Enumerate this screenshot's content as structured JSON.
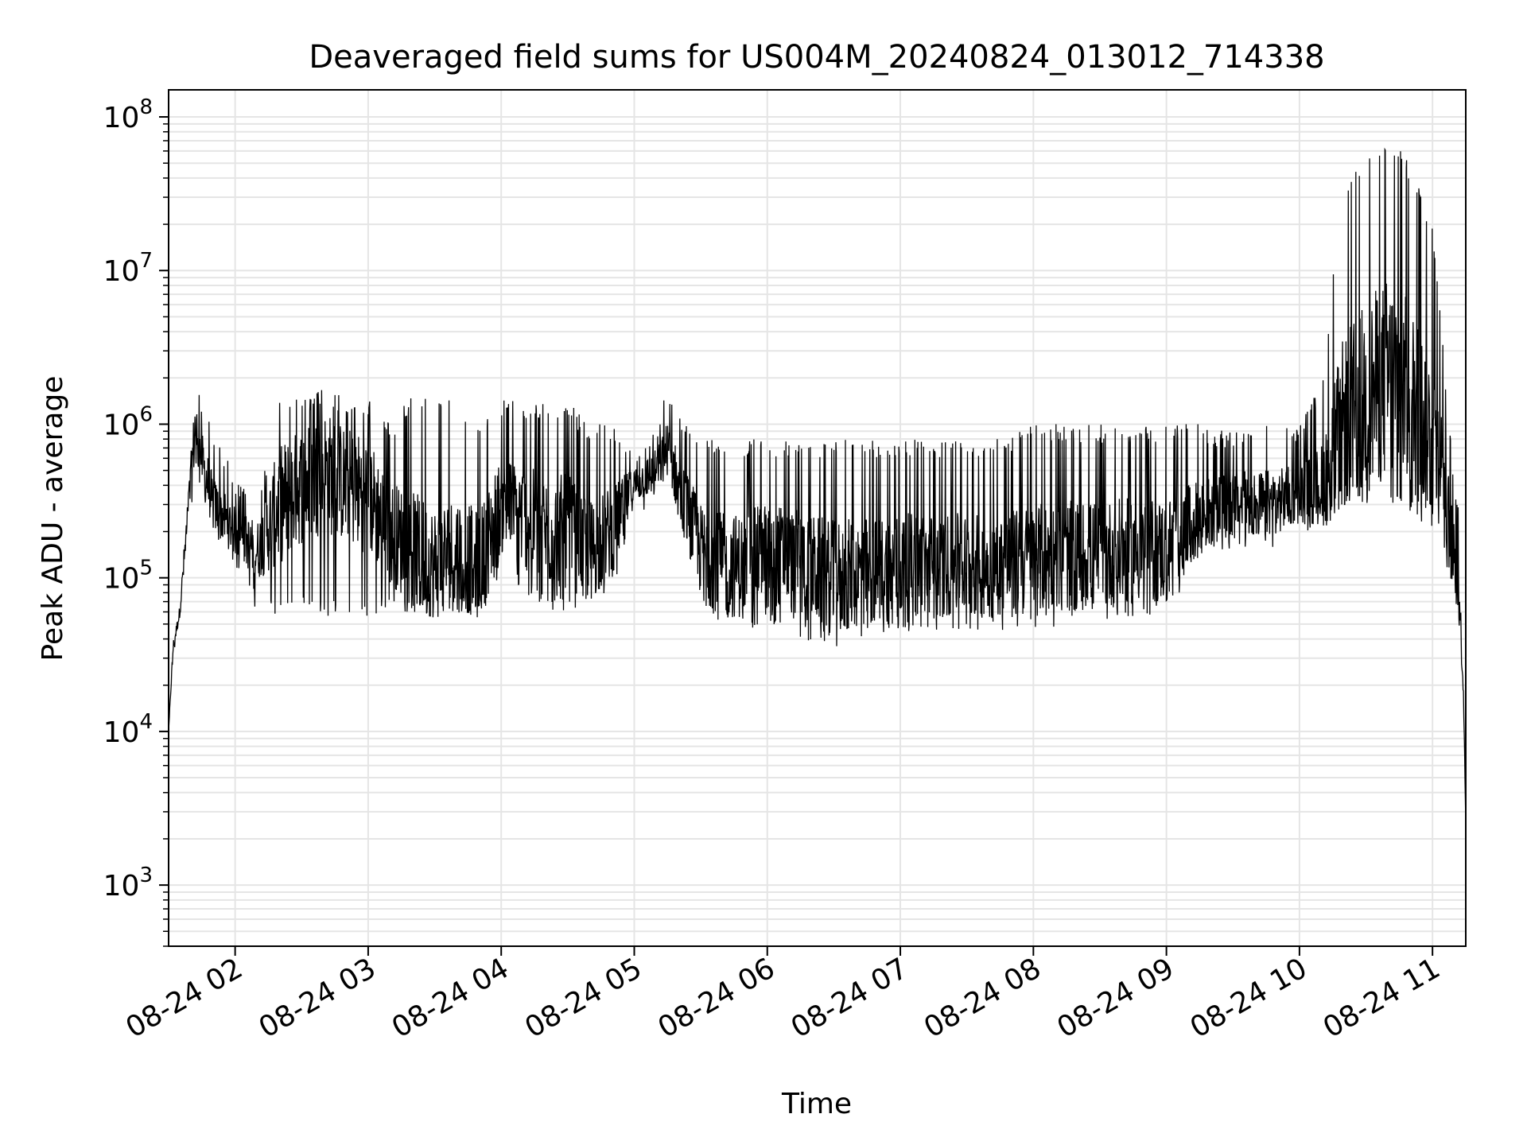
{
  "chart_data": {
    "type": "line",
    "title": "Deaveraged field sums for US004M_20240824_013012_714338",
    "xlabel": "Time",
    "ylabel": "Peak ADU - average",
    "yscale": "log",
    "ylim": [
      400,
      150000000
    ],
    "xlim": [
      "2024-08-24 01:30",
      "2024-08-24 11:15"
    ],
    "x_ticks": [
      "08-24 02",
      "08-24 03",
      "08-24 04",
      "08-24 05",
      "08-24 06",
      "08-24 07",
      "08-24 08",
      "08-24 09",
      "08-24 10",
      "08-24 11"
    ],
    "x_tick_times": [
      "2024-08-24 02:00",
      "2024-08-24 03:00",
      "2024-08-24 04:00",
      "2024-08-24 05:00",
      "2024-08-24 06:00",
      "2024-08-24 07:00",
      "2024-08-24 08:00",
      "2024-08-24 09:00",
      "2024-08-24 10:00",
      "2024-08-24 11:00"
    ],
    "y_ticks": [
      {
        "value": 1000,
        "base": "10",
        "exp": "3"
      },
      {
        "value": 10000,
        "base": "10",
        "exp": "4"
      },
      {
        "value": 100000,
        "base": "10",
        "exp": "5"
      },
      {
        "value": 1000000,
        "base": "10",
        "exp": "6"
      },
      {
        "value": 10000000,
        "base": "10",
        "exp": "7"
      },
      {
        "value": 100000000,
        "base": "10",
        "exp": "8"
      }
    ],
    "grid": true,
    "line_color": "#000000",
    "grid_color": "#e5e5e5",
    "series": [
      {
        "x": [
          "2024-08-24 01:30",
          "2024-08-24 01:32",
          "2024-08-24 01:35",
          "2024-08-24 01:40",
          "2024-08-24 01:42",
          "2024-08-24 01:44",
          "2024-08-24 01:46",
          "2024-08-24 01:48",
          "2024-08-24 01:50",
          "2024-08-24 01:55",
          "2024-08-24 02:00",
          "2024-08-24 02:10",
          "2024-08-24 02:20",
          "2024-08-24 02:30",
          "2024-08-24 02:40",
          "2024-08-24 02:50",
          "2024-08-24 03:00",
          "2024-08-24 03:10",
          "2024-08-24 03:20",
          "2024-08-24 03:30",
          "2024-08-24 03:40",
          "2024-08-24 03:50",
          "2024-08-24 04:00",
          "2024-08-24 04:10",
          "2024-08-24 04:20",
          "2024-08-24 04:30",
          "2024-08-24 04:40",
          "2024-08-24 04:50",
          "2024-08-24 05:00",
          "2024-08-24 05:10",
          "2024-08-24 05:15",
          "2024-08-24 05:20",
          "2024-08-24 05:30",
          "2024-08-24 05:40",
          "2024-08-24 05:50",
          "2024-08-24 06:00",
          "2024-08-24 06:15",
          "2024-08-24 06:30",
          "2024-08-24 06:45",
          "2024-08-24 07:00",
          "2024-08-24 07:15",
          "2024-08-24 07:30",
          "2024-08-24 07:45",
          "2024-08-24 08:00",
          "2024-08-24 08:15",
          "2024-08-24 08:30",
          "2024-08-24 08:45",
          "2024-08-24 09:00",
          "2024-08-24 09:15",
          "2024-08-24 09:30",
          "2024-08-24 09:45",
          "2024-08-24 10:00",
          "2024-08-24 10:10",
          "2024-08-24 10:20",
          "2024-08-24 10:30",
          "2024-08-24 10:40",
          "2024-08-24 10:50",
          "2024-08-24 11:00",
          "2024-08-24 11:05",
          "2024-08-24 11:08",
          "2024-08-24 11:10",
          "2024-08-24 11:12",
          "2024-08-24 11:14",
          "2024-08-24 11:15"
        ],
        "upper": [
          10000,
          40000,
          70000,
          600000,
          2700000,
          1500000,
          1600000,
          1200000,
          900000,
          700000,
          450000,
          300000,
          1500000,
          1500000,
          1700000,
          1500000,
          1500000,
          1000000,
          1600000,
          1500000,
          1400000,
          1100000,
          1500000,
          1400000,
          1400000,
          1400000,
          1000000,
          1000000,
          700000,
          1000000,
          1800000,
          1200000,
          800000,
          800000,
          800000,
          800000,
          800000,
          800000,
          800000,
          800000,
          800000,
          800000,
          800000,
          1000000,
          1000000,
          1000000,
          1000000,
          1000000,
          1000000,
          900000,
          1000000,
          1000000,
          2000000,
          40000000,
          60000000,
          80000000,
          50000000,
          20000000,
          3000000,
          1000000,
          400000,
          300000,
          20000,
          2500
        ],
        "lower": [
          10000,
          28000,
          50000,
          100000,
          500000,
          400000,
          300000,
          250000,
          200000,
          150000,
          120000,
          60000,
          55000,
          60000,
          55000,
          60000,
          55000,
          60000,
          60000,
          55000,
          60000,
          55000,
          100000,
          80000,
          60000,
          60000,
          60000,
          80000,
          250000,
          300000,
          400000,
          200000,
          60000,
          45000,
          45000,
          50000,
          40000,
          35000,
          40000,
          45000,
          45000,
          45000,
          45000,
          45000,
          50000,
          50000,
          55000,
          55000,
          130000,
          150000,
          150000,
          200000,
          200000,
          300000,
          300000,
          300000,
          250000,
          200000,
          150000,
          80000,
          60000,
          50000,
          15000,
          2500
        ],
        "typical": [
          10000,
          35000,
          60000,
          400000,
          1000000,
          700000,
          500000,
          400000,
          300000,
          250000,
          200000,
          150000,
          300000,
          400000,
          500000,
          400000,
          350000,
          200000,
          150000,
          120000,
          150000,
          120000,
          300000,
          250000,
          200000,
          200000,
          150000,
          200000,
          400000,
          500000,
          700000,
          400000,
          150000,
          120000,
          120000,
          150000,
          120000,
          100000,
          110000,
          120000,
          120000,
          120000,
          120000,
          130000,
          140000,
          140000,
          150000,
          150000,
          250000,
          300000,
          300000,
          350000,
          400000,
          1000000,
          1500000,
          2000000,
          1500000,
          800000,
          500000,
          200000,
          120000,
          80000,
          18000,
          2500
        ]
      }
    ]
  }
}
